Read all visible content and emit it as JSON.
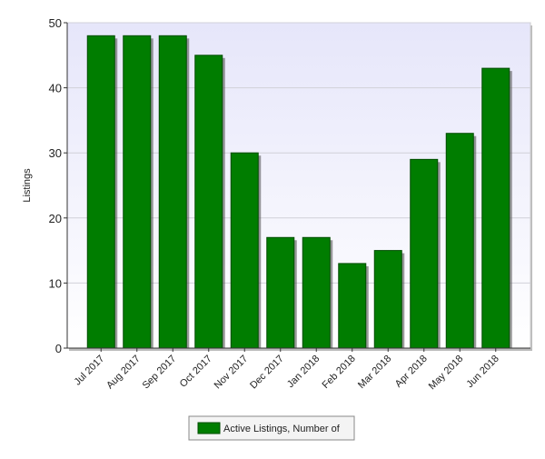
{
  "chart_data": {
    "type": "bar",
    "y_label": "Listings",
    "categories": [
      "Jul 2017",
      "Aug 2017",
      "Sep 2017",
      "Oct 2017",
      "Nov 2017",
      "Dec 2017",
      "Jan 2018",
      "Feb 2018",
      "Mar 2018",
      "Apr 2018",
      "May 2018",
      "Jun 2018"
    ],
    "series": [
      {
        "name": "Active Listings, Number of",
        "color": "#007d00",
        "values": [
          48,
          48,
          48,
          45,
          30,
          17,
          17,
          13,
          15,
          29,
          33,
          43
        ]
      }
    ],
    "ylim": [
      0,
      50
    ],
    "yticks": [
      0,
      10,
      20,
      30,
      40,
      50
    ],
    "grid": true,
    "legend": "bottom"
  }
}
